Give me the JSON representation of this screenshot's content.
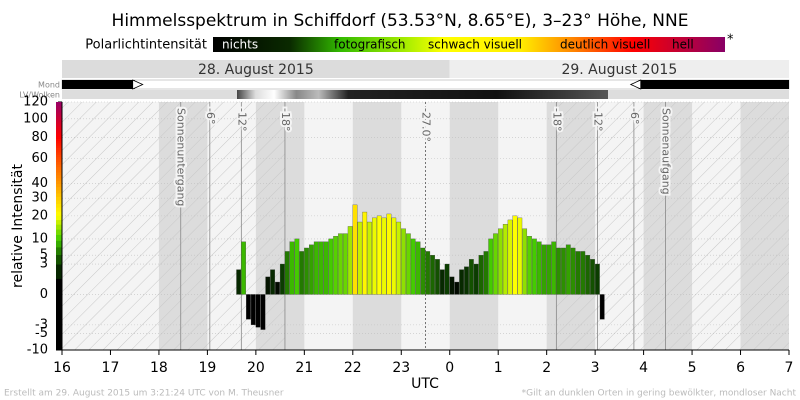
{
  "chart_data": {
    "type": "bar",
    "title": "Himmelsspektrum in Schiffdorf (53.53°N, 8.65°E), 3–23° Höhe, NNE",
    "legend_title": "Polarlichtintensität",
    "legend_labels": [
      "nichts",
      "fotografisch",
      "schwach visuell",
      "deutlich visuell",
      "hell"
    ],
    "legend_note": "*",
    "dates": [
      "28. August 2015",
      "29. August 2015"
    ],
    "row_labels": [
      "Mond",
      "LV/Wolken"
    ],
    "moon_up": [
      [
        16,
        17.5
      ],
      [
        27.9,
        31
      ]
    ],
    "ylabel": "relative Intensität",
    "xlabel": "UTC",
    "yscale": "sqrt",
    "ylim": [
      -10,
      120
    ],
    "yticks": [
      120,
      100,
      80,
      60,
      40,
      30,
      20,
      10,
      5,
      3,
      0,
      -3,
      -5,
      -10
    ],
    "xlim": [
      16,
      31
    ],
    "xticks": [
      16,
      17,
      18,
      19,
      20,
      21,
      22,
      23,
      {
        "value": 24,
        "label": "0"
      },
      {
        "value": 25,
        "label": "1"
      },
      {
        "value": 26,
        "label": "2"
      },
      {
        "value": 27,
        "label": "3"
      },
      {
        "value": 28,
        "label": "4"
      },
      {
        "value": 29,
        "label": "5"
      },
      {
        "value": 30,
        "label": "6"
      },
      {
        "value": 31,
        "label": "7"
      }
    ],
    "annotations": [
      {
        "x": 18.45,
        "label": "Sonnenuntergang"
      },
      {
        "x": 19.05,
        "label": "-6°"
      },
      {
        "x": 19.7,
        "label": "-12°"
      },
      {
        "x": 20.6,
        "label": "-18°"
      },
      {
        "x": 23.5,
        "label": "-27.0°",
        "dashed": true
      },
      {
        "x": 26.2,
        "label": "-18°"
      },
      {
        "x": 27.05,
        "label": "-12°"
      },
      {
        "x": 27.8,
        "label": "-6°"
      },
      {
        "x": 28.45,
        "label": "Sonnenaufgang"
      }
    ],
    "colorscale": [
      {
        "value": 0,
        "color": "#000000"
      },
      {
        "value": 3,
        "color": "#0b3d00"
      },
      {
        "value": 10,
        "color": "#44cc00"
      },
      {
        "value": 20,
        "color": "#ffff00"
      },
      {
        "value": 40,
        "color": "#ff9900"
      },
      {
        "value": 80,
        "color": "#ff0000"
      },
      {
        "value": 120,
        "color": "#990066"
      }
    ],
    "x": [
      19.6,
      19.7,
      19.8,
      19.9,
      20.0,
      20.1,
      20.2,
      20.3,
      20.4,
      20.5,
      20.6,
      20.7,
      20.8,
      20.9,
      21.0,
      21.1,
      21.2,
      21.3,
      21.4,
      21.5,
      21.6,
      21.7,
      21.8,
      21.9,
      22.0,
      22.1,
      22.2,
      22.3,
      22.4,
      22.5,
      22.6,
      22.7,
      22.8,
      22.9,
      23.0,
      23.1,
      23.2,
      23.3,
      23.4,
      23.5,
      23.6,
      23.7,
      23.8,
      23.9,
      24.0,
      24.1,
      24.2,
      24.3,
      24.4,
      24.5,
      24.6,
      24.7,
      24.8,
      24.9,
      25.0,
      25.1,
      25.2,
      25.3,
      25.4,
      25.5,
      25.6,
      25.7,
      25.8,
      25.9,
      26.0,
      26.1,
      26.2,
      26.3,
      26.4,
      26.5,
      26.6,
      26.7,
      26.8,
      26.9,
      27.0,
      27.1
    ],
    "values": [
      2,
      9,
      -2,
      -3,
      -3.5,
      -4,
      1,
      2,
      0.5,
      3,
      6,
      9,
      10,
      6,
      7,
      8,
      9,
      9,
      9,
      10,
      11,
      12,
      12,
      15,
      26,
      17,
      22,
      17,
      19,
      20,
      19,
      21,
      19,
      17,
      14,
      12,
      10,
      9,
      7,
      6,
      5,
      4,
      2,
      3,
      1,
      0.5,
      2,
      2.5,
      4,
      3,
      5,
      6,
      10,
      12,
      14,
      16,
      18,
      20,
      19,
      14,
      11,
      10,
      9,
      8,
      8,
      9,
      7,
      7,
      8,
      7,
      6,
      6,
      5,
      4,
      3,
      -2
    ],
    "footer_left": "Erstellt am 29. August 2015 um 3:21:24 UTC von M. Theusner",
    "footer_right": "*Gilt an dunklen Orten in gering bewölkter, mondloser Nacht"
  }
}
